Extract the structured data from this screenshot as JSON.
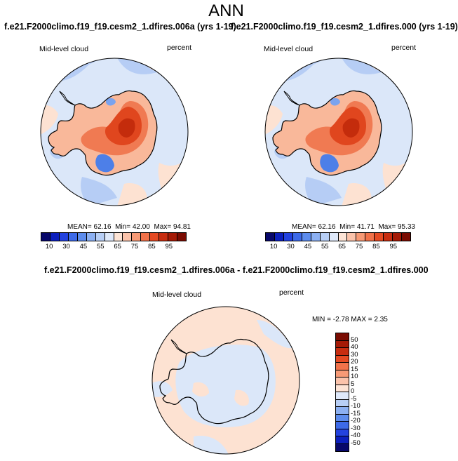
{
  "figure": {
    "title": "ANN"
  },
  "panels": [
    {
      "title": "f.e21.F2000climo.f19_f19.cesm2_1.dfires.006a (yrs 1-19)",
      "left_label": "Mid-level cloud",
      "right_label": "percent",
      "stats": {
        "mean_label": "MEAN=",
        "mean": "62.16",
        "min_label": "Min=",
        "min": "42.00",
        "max_label": "Max=",
        "max": "94.81"
      }
    },
    {
      "title": "f.e21.F2000climo.f19_f19.cesm2_1.dfires.000 (yrs 1-19)",
      "left_label": "Mid-level cloud",
      "right_label": "percent",
      "stats": {
        "mean_label": "MEAN=",
        "mean": "62.16",
        "min_label": "Min=",
        "min": "41.71",
        "max_label": "Max=",
        "max": "95.33"
      }
    },
    {
      "title": "f.e21.F2000climo.f19_f19.cesm2_1.dfires.006a - f.e21.F2000climo.f19_f19.cesm2_1.dfires.000",
      "left_label": "Mid-level cloud",
      "right_label": "percent",
      "stats": {
        "min_label": "MIN =",
        "min": "-2.78",
        "max_label": "MAX =",
        "max": "2.35"
      }
    }
  ],
  "colorbar_abs": {
    "ticks": [
      "10",
      "30",
      "45",
      "55",
      "65",
      "75",
      "85",
      "95"
    ],
    "colors": [
      "#08086a",
      "#0c1fbd",
      "#2342df",
      "#3d6ae8",
      "#5d8ced",
      "#8cb0f2",
      "#b8cff6",
      "#dfe9fa",
      "#fde4d6",
      "#fbc3ab",
      "#f79a76",
      "#f1724a",
      "#e54a23",
      "#c82d10",
      "#a51a06",
      "#7a0c02"
    ]
  },
  "colorbar_diff": {
    "ticks": [
      "50",
      "40",
      "30",
      "20",
      "15",
      "10",
      "5",
      "0",
      "-5",
      "-10",
      "-15",
      "-20",
      "-30",
      "-40",
      "-50"
    ],
    "colors": [
      "#7a0c02",
      "#a51a06",
      "#c82d10",
      "#e54a23",
      "#f1724a",
      "#f79a76",
      "#fbc3ab",
      "#fde4d6",
      "#dfe9fa",
      "#b8cff6",
      "#8cb0f2",
      "#5d8ced",
      "#3d6ae8",
      "#2342df",
      "#0c1fbd",
      "#08086a"
    ]
  },
  "map_colors": {
    "ocean_light": "#dbe7f9",
    "ocean_mid": "#b6cdf5",
    "warm_light": "#fde2d2",
    "warm_mid": "#f9b89a",
    "warm_strong": "#f07a52",
    "hot": "#e0461e",
    "hottest": "#c42c0c",
    "cold": "#4d7fe8",
    "cold_mid": "#7aa3ee"
  }
}
